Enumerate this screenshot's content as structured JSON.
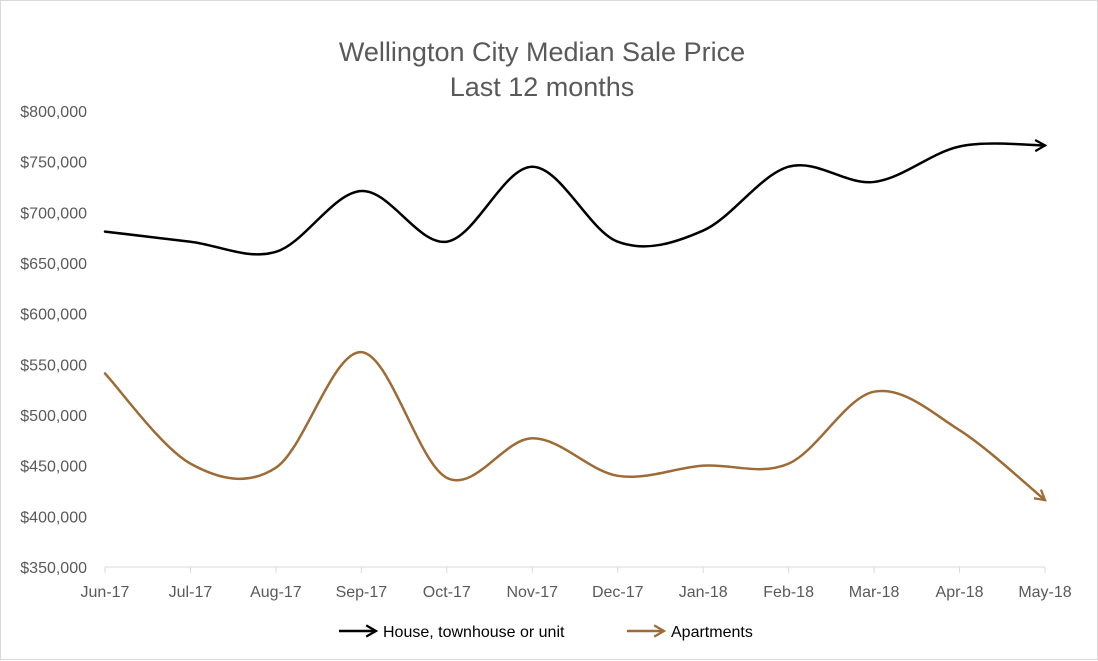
{
  "chart_data": {
    "type": "line",
    "title": "Wellington City Median Sale Price",
    "subtitle": "Last 12 months",
    "xlabel": "",
    "ylabel": "",
    "categories": [
      "Jun-17",
      "Jul-17",
      "Aug-17",
      "Sep-17",
      "Oct-17",
      "Nov-17",
      "Dec-17",
      "Jan-18",
      "Feb-18",
      "Mar-18",
      "Apr-18",
      "May-18"
    ],
    "ylim": [
      350000,
      800000
    ],
    "yticks": [
      350000,
      400000,
      450000,
      500000,
      550000,
      600000,
      650000,
      700000,
      750000,
      800000
    ],
    "ytick_labels": [
      "$350,000",
      "$400,000",
      "$450,000",
      "$500,000",
      "$550,000",
      "$600,000",
      "$650,000",
      "$700,000",
      "$750,000",
      "$800,000"
    ],
    "grid": false,
    "legend_position": "bottom",
    "series": [
      {
        "name": "House, townhouse or unit",
        "color": "#000000",
        "values": [
          681000,
          671000,
          661000,
          721000,
          671000,
          745000,
          671000,
          682000,
          745000,
          730000,
          765000,
          766000
        ]
      },
      {
        "name": "Apartments",
        "color": "#9E6B35",
        "values": [
          541000,
          452000,
          448000,
          562000,
          438000,
          477000,
          440000,
          450000,
          452000,
          523000,
          485000,
          416000
        ]
      }
    ]
  }
}
